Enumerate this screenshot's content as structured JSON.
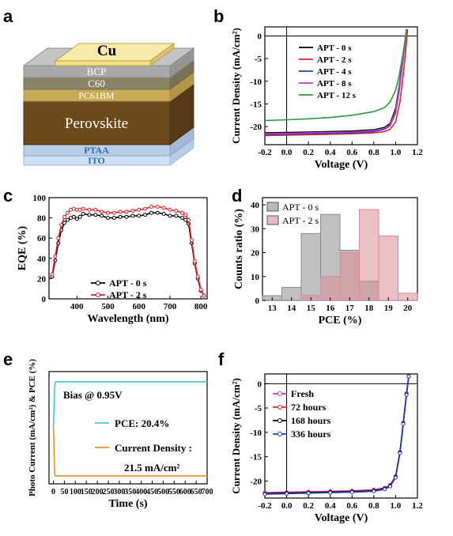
{
  "panel_letters": [
    "a",
    "b",
    "c",
    "d",
    "e",
    "f"
  ],
  "device_stack": {
    "layers": [
      {
        "label": "Cu",
        "color": "#f2df86"
      },
      {
        "label": "BCP",
        "color": "#a9a9a9"
      },
      {
        "label": "C60",
        "color": "#8c8468"
      },
      {
        "label": "PC61BM",
        "color": "#bfa35a"
      },
      {
        "label": "Perovskite",
        "color": "#6b4a1b"
      },
      {
        "label": "PTAA",
        "color": "#b9cde6"
      },
      {
        "label": "ITO",
        "color": "#cfe0f5"
      }
    ]
  },
  "chart_data": [
    {
      "id": "b",
      "type": "line",
      "xlabel": "Voltage (V)",
      "ylabel": "Current Density (mA/cm²)",
      "xlim": [
        -0.2,
        1.2
      ],
      "ylim": [
        -24,
        2
      ],
      "xticks": [
        "-0.2",
        "0.0",
        "0.2",
        "0.4",
        "0.6",
        "0.8",
        "1.0",
        "1.2"
      ],
      "yticks": [
        "0",
        "-5",
        "-10",
        "-15",
        "-20"
      ],
      "legend_position": "top-left",
      "series": [
        {
          "name": "APT - 0 s",
          "color": "#000000",
          "x": [
            -0.2,
            0,
            0.2,
            0.4,
            0.6,
            0.8,
            0.9,
            0.95,
            1.0,
            1.03,
            1.06,
            1.08,
            1.1
          ],
          "y": [
            -21.4,
            -21.3,
            -21.2,
            -21.1,
            -21.0,
            -20.7,
            -20.2,
            -19.3,
            -16.0,
            -11.5,
            -6.0,
            -2.5,
            1.5
          ]
        },
        {
          "name": "APT - 2 s",
          "color": "#e8202a",
          "x": [
            -0.2,
            0,
            0.2,
            0.4,
            0.6,
            0.8,
            0.9,
            0.95,
            1.0,
            1.04,
            1.07,
            1.09,
            1.11
          ],
          "y": [
            -22.0,
            -21.9,
            -21.8,
            -21.7,
            -21.6,
            -21.4,
            -21.1,
            -20.6,
            -19.0,
            -14.5,
            -8.5,
            -4.0,
            1.5
          ]
        },
        {
          "name": "APT - 4 s",
          "color": "#1f3fc6",
          "x": [
            -0.2,
            0,
            0.2,
            0.4,
            0.6,
            0.8,
            0.9,
            0.95,
            1.0,
            1.03,
            1.06,
            1.08,
            1.1
          ],
          "y": [
            -21.8,
            -21.7,
            -21.6,
            -21.5,
            -21.4,
            -21.1,
            -20.6,
            -19.8,
            -17.0,
            -12.5,
            -7.0,
            -3.0,
            1.5
          ]
        },
        {
          "name": "APT - 8 s",
          "color": "#c43bc4",
          "x": [
            -0.2,
            0,
            0.2,
            0.4,
            0.6,
            0.8,
            0.9,
            0.95,
            1.0,
            1.03,
            1.06,
            1.08,
            1.1
          ],
          "y": [
            -21.6,
            -21.5,
            -21.4,
            -21.3,
            -21.2,
            -20.9,
            -20.4,
            -19.6,
            -16.5,
            -12.0,
            -6.5,
            -2.8,
            1.5
          ]
        },
        {
          "name": "APT - 12 s",
          "color": "#2c9a3a",
          "x": [
            -0.2,
            0,
            0.2,
            0.4,
            0.6,
            0.8,
            0.9,
            0.95,
            1.0,
            1.03,
            1.06,
            1.08,
            1.1
          ],
          "y": [
            -18.7,
            -18.5,
            -18.3,
            -18.0,
            -17.5,
            -16.7,
            -15.8,
            -14.6,
            -12.0,
            -9.0,
            -5.0,
            -2.0,
            1.5
          ]
        }
      ]
    },
    {
      "id": "c",
      "type": "line",
      "xlabel": "Wavelength (nm)",
      "ylabel": "EQE (%)",
      "xlim": [
        310,
        820
      ],
      "ylim": [
        0,
        100
      ],
      "xticks": [
        "400",
        "500",
        "600",
        "700",
        "800"
      ],
      "yticks": [
        "0",
        "20",
        "40",
        "60",
        "80",
        "100"
      ],
      "legend_position": "bottom-center",
      "series": [
        {
          "name": "APT - 0 s",
          "color": "#000000",
          "x": [
            320,
            330,
            340,
            350,
            360,
            370,
            380,
            390,
            400,
            410,
            420,
            440,
            460,
            480,
            500,
            520,
            540,
            560,
            580,
            600,
            620,
            640,
            660,
            680,
            700,
            720,
            740,
            750,
            760,
            770,
            780,
            790,
            800,
            810
          ],
          "y": [
            22,
            38,
            55,
            68,
            75,
            78,
            80,
            81,
            79,
            81,
            84,
            83,
            83,
            82,
            80,
            80,
            81,
            81,
            82,
            82,
            83,
            85,
            85,
            84,
            82,
            82,
            80,
            78,
            74,
            55,
            35,
            20,
            8,
            3
          ]
        },
        {
          "name": "APT - 2 s",
          "color": "#e8202a",
          "x": [
            320,
            330,
            340,
            350,
            360,
            370,
            380,
            390,
            400,
            410,
            420,
            440,
            460,
            480,
            500,
            520,
            540,
            560,
            580,
            600,
            620,
            640,
            660,
            680,
            700,
            720,
            740,
            750,
            760,
            770,
            780,
            790,
            800,
            810
          ],
          "y": [
            24,
            42,
            60,
            73,
            81,
            85,
            88,
            89,
            88,
            88,
            89,
            88,
            88,
            86,
            85,
            85,
            86,
            86,
            87,
            88,
            89,
            91,
            91,
            90,
            88,
            87,
            85,
            83,
            78,
            58,
            37,
            22,
            9,
            3
          ]
        }
      ]
    },
    {
      "id": "d",
      "type": "bar",
      "xlabel": "PCE (%)",
      "ylabel": "Counts ratio (%)",
      "xlim": [
        12.5,
        20.5
      ],
      "ylim": [
        0,
        43
      ],
      "xticks": [
        "13",
        "14",
        "15",
        "16",
        "17",
        "18",
        "19",
        "20"
      ],
      "yticks": [
        "0",
        "10",
        "20",
        "30",
        "40"
      ],
      "legend_position": "top-left",
      "series": [
        {
          "name": "APT - 0 s",
          "color": "#8c8c8c",
          "categories": [
            13,
            14,
            15,
            16,
            17,
            18,
            19,
            20
          ],
          "values": [
            2,
            5.5,
            28,
            36,
            21,
            8,
            0,
            0
          ]
        },
        {
          "name": "APT - 2 s",
          "color": "#d98b95",
          "categories": [
            13,
            14,
            15,
            16,
            17,
            18,
            19,
            20
          ],
          "values": [
            0,
            0,
            2,
            10,
            20,
            38,
            27,
            3
          ]
        }
      ]
    },
    {
      "id": "e",
      "type": "line",
      "xlabel": "Time (s)",
      "ylabel": "Photo Current (mA/cm²) & PCE (%)",
      "xlim": [
        -20,
        700
      ],
      "ylim": [
        -25,
        25
      ],
      "xticks": [
        "0",
        "50",
        "100",
        "150",
        "200",
        "250",
        "300",
        "350",
        "400",
        "450",
        "500",
        "550",
        "600",
        "650",
        "700"
      ],
      "yticks": [],
      "annotations": [
        "Bias @ 0.95V",
        "PCE: 20.4%",
        "Current Density :",
        "21.5 mA/cm²"
      ],
      "series": [
        {
          "name": "PCE: 20.4%",
          "color": "#47c9c3",
          "x": [
            0,
            2,
            4,
            6,
            8,
            10,
            700
          ],
          "y": [
            0,
            6,
            14,
            18,
            20,
            20.4,
            20.4
          ]
        },
        {
          "name": "Current Density : 21.5 mA/cm²",
          "color": "#ee8a2a",
          "x": [
            0,
            2,
            4,
            6,
            8,
            10,
            700
          ],
          "y": [
            0,
            -5,
            -15,
            -20,
            -21.3,
            -21.5,
            -21.5
          ]
        }
      ]
    },
    {
      "id": "f",
      "type": "line",
      "xlabel": "Voltage (V)",
      "ylabel": "Current Density (mA/cm²)",
      "xlim": [
        -0.2,
        1.2
      ],
      "ylim": [
        -23.5,
        2
      ],
      "xticks": [
        "-0.2",
        "0.0",
        "0.2",
        "0.4",
        "0.6",
        "0.8",
        "1.0",
        "1.2"
      ],
      "yticks": [
        "0",
        "-5",
        "-10",
        "-15",
        "-20"
      ],
      "legend_position": "top-left",
      "series": [
        {
          "name": "Fresh",
          "color": "#c43bc4",
          "x": [
            -0.2,
            0,
            0.2,
            0.4,
            0.6,
            0.8,
            0.9,
            0.95,
            1.0,
            1.04,
            1.07,
            1.1,
            1.12
          ],
          "y": [
            -22.4,
            -22.3,
            -22.2,
            -22.1,
            -22.0,
            -21.8,
            -21.4,
            -20.8,
            -19.0,
            -14.0,
            -8.0,
            -2.0,
            1.5
          ]
        },
        {
          "name": "72 hours",
          "color": "#e8202a",
          "x": [
            -0.2,
            0,
            0.2,
            0.4,
            0.6,
            0.8,
            0.9,
            0.95,
            1.0,
            1.04,
            1.07,
            1.1,
            1.12
          ],
          "y": [
            -22.5,
            -22.4,
            -22.3,
            -22.2,
            -22.1,
            -21.9,
            -21.5,
            -20.9,
            -19.1,
            -14.1,
            -8.1,
            -2.1,
            1.5
          ]
        },
        {
          "name": "168 hours",
          "color": "#000000",
          "x": [
            -0.2,
            0,
            0.2,
            0.4,
            0.6,
            0.8,
            0.9,
            0.95,
            1.0,
            1.04,
            1.07,
            1.1,
            1.12
          ],
          "y": [
            -22.6,
            -22.5,
            -22.4,
            -22.3,
            -22.2,
            -22.0,
            -21.6,
            -21.0,
            -19.2,
            -14.2,
            -8.2,
            -2.2,
            1.5
          ]
        },
        {
          "name": "336 hours",
          "color": "#1f3fc6",
          "x": [
            -0.2,
            0,
            0.2,
            0.4,
            0.6,
            0.8,
            0.9,
            0.95,
            1.0,
            1.04,
            1.07,
            1.1,
            1.12
          ],
          "y": [
            -22.7,
            -22.6,
            -22.5,
            -22.4,
            -22.3,
            -22.1,
            -21.7,
            -21.1,
            -19.3,
            -14.3,
            -8.3,
            -2.3,
            1.5
          ]
        }
      ]
    }
  ]
}
